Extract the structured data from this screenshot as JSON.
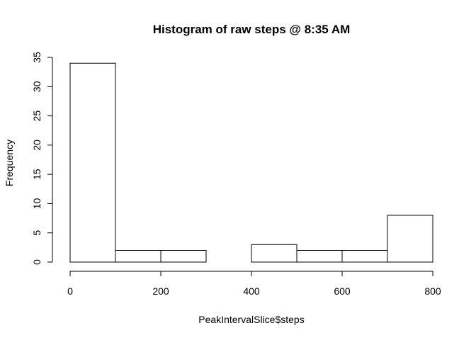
{
  "chart_data": {
    "type": "bar",
    "title": "Histogram of raw steps @ 8:35 AM",
    "xlabel": "PeakIntervalSlice$steps",
    "ylabel": "Frequency",
    "bins": [
      {
        "from": 0,
        "to": 100,
        "count": 34
      },
      {
        "from": 100,
        "to": 200,
        "count": 2
      },
      {
        "from": 200,
        "to": 300,
        "count": 2
      },
      {
        "from": 300,
        "to": 400,
        "count": 0
      },
      {
        "from": 400,
        "to": 500,
        "count": 3
      },
      {
        "from": 500,
        "to": 600,
        "count": 2
      },
      {
        "from": 600,
        "to": 700,
        "count": 2
      },
      {
        "from": 700,
        "to": 800,
        "count": 8
      }
    ],
    "xlim": [
      0,
      800
    ],
    "ylim": [
      0,
      35
    ],
    "xticks": [
      0,
      200,
      400,
      600,
      800
    ],
    "yticks": [
      0,
      5,
      10,
      15,
      20,
      25,
      30,
      35
    ],
    "grid": false,
    "bar_fill": "#ffffff",
    "bar_stroke": "#000000"
  }
}
